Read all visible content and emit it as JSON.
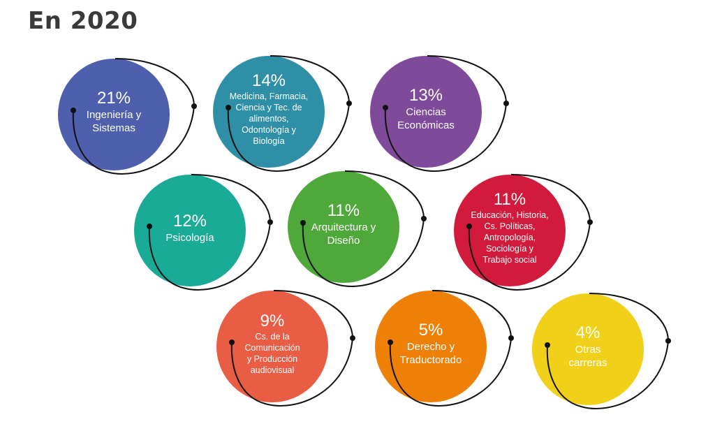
{
  "title": "En 2020",
  "chart_data": {
    "type": "bubble",
    "unit": "%",
    "items": [
      {
        "value": 21,
        "value_label": "21%",
        "label": "Ingeniería y\nSistemas",
        "color": "#4e5fae"
      },
      {
        "value": 14,
        "value_label": "14%",
        "label": "Medicina, Farmacia,\nCiencia y Tec. de\nalimentos,\nOdontología y\nBiología",
        "color": "#2f8fa6"
      },
      {
        "value": 13,
        "value_label": "13%",
        "label": "Ciencias\nEconómicas",
        "color": "#7f4a99"
      },
      {
        "value": 12,
        "value_label": "12%",
        "label": "Psicología",
        "color": "#1aab97"
      },
      {
        "value": 11,
        "value_label": "11%",
        "label": "Arquitectura y\nDiseño",
        "color": "#4fa83a"
      },
      {
        "value": 11,
        "value_label": "11%",
        "label": "Educación, Historia,\nCs. Políticas,\nAntropología,\nSociología y\nTrabajo social",
        "color": "#d21a3c"
      },
      {
        "value": 9,
        "value_label": "9%",
        "label": "Cs. de la\nComunicación\ny Producción\naudiovisual",
        "color": "#e95d45"
      },
      {
        "value": 5,
        "value_label": "5%",
        "label": "Derecho y\nTraductorado",
        "color": "#ee8008"
      },
      {
        "value": 4,
        "value_label": "4%",
        "label": "Otras\ncarreras",
        "color": "#f0d019"
      }
    ]
  }
}
